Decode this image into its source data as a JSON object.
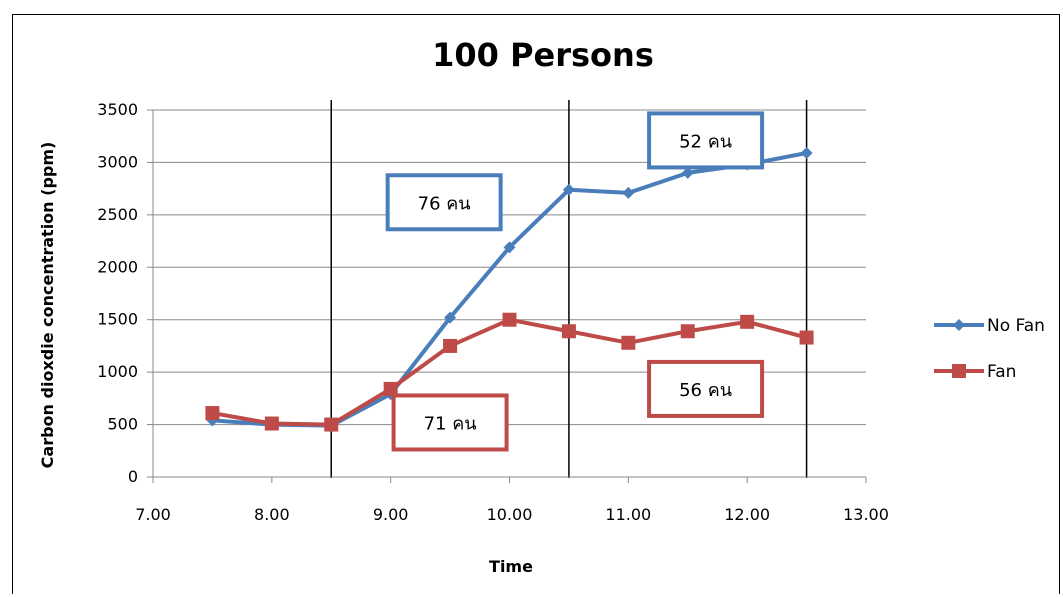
{
  "chart_data": {
    "type": "line",
    "title": "100 Persons",
    "xlabel": "Time",
    "ylabel": "Carbon dioxdie concentration (ppm)",
    "xlim": [
      7.0,
      13.0
    ],
    "ylim": [
      0,
      3500
    ],
    "x_ticks": [
      "7.00",
      "8.00",
      "9.00",
      "10.00",
      "11.00",
      "12.00",
      "13.00"
    ],
    "x_tick_values": [
      7,
      8,
      9,
      10,
      11,
      12,
      13
    ],
    "y_ticks": [
      "0",
      "500",
      "1000",
      "1500",
      "2000",
      "2500",
      "3000",
      "3500"
    ],
    "y_tick_values": [
      0,
      500,
      1000,
      1500,
      2000,
      2500,
      3000,
      3500
    ],
    "grid": "horizontal",
    "legend_position": "right",
    "vertical_markers": [
      8.5,
      10.5,
      12.5
    ],
    "series": [
      {
        "name": "No Fan",
        "color": "#4a7ebb",
        "marker": "diamond",
        "x": [
          7.5,
          8.0,
          8.5,
          9.0,
          9.5,
          10.0,
          10.5,
          11.0,
          11.5,
          12.0,
          12.5
        ],
        "values": [
          540,
          500,
          490,
          790,
          1520,
          2190,
          2740,
          2710,
          2900,
          2980,
          3090
        ]
      },
      {
        "name": "Fan",
        "color": "#be4b48",
        "marker": "square",
        "x": [
          7.5,
          8.0,
          8.5,
          9.0,
          9.5,
          10.0,
          10.5,
          11.0,
          11.5,
          12.0,
          12.5
        ],
        "values": [
          610,
          510,
          500,
          840,
          1250,
          1500,
          1390,
          1280,
          1390,
          1480,
          1330
        ]
      }
    ],
    "annotations": [
      {
        "text": "76 คน",
        "color": "#4a7ebb"
      },
      {
        "text": "52 คน",
        "color": "#4a7ebb"
      },
      {
        "text": "71 คน",
        "color": "#be4b48"
      },
      {
        "text": "56 คน",
        "color": "#be4b48"
      }
    ]
  }
}
